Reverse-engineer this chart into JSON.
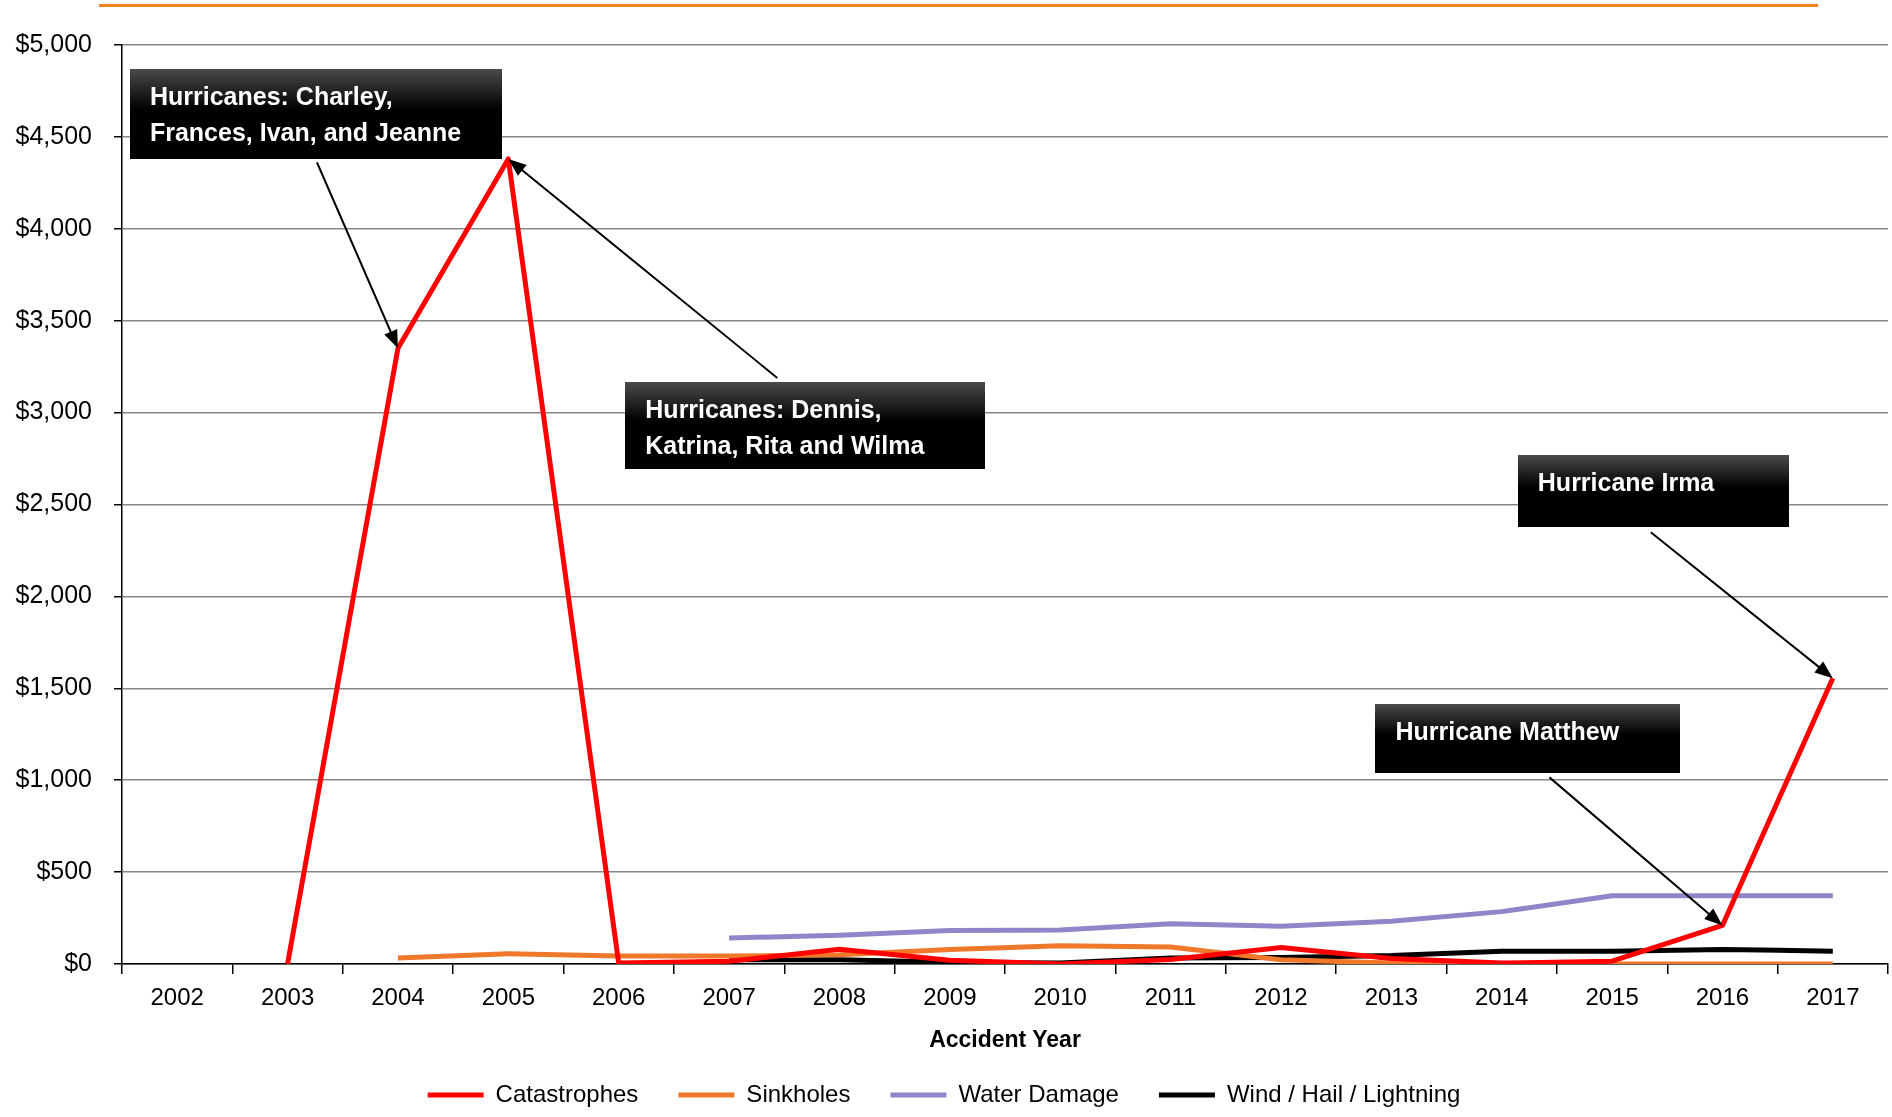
{
  "chart_data": {
    "type": "line",
    "categories": [
      "2002",
      "2003",
      "2004",
      "2005",
      "2006",
      "2007",
      "2008",
      "2009",
      "2010",
      "2011",
      "2012",
      "2013",
      "2014",
      "2015",
      "2016",
      "2017"
    ],
    "series": [
      {
        "name": "Catastrophes",
        "color": "#ff0000",
        "values": [
          null,
          0,
          3350,
          4380,
          5,
          15,
          80,
          20,
          0,
          25,
          90,
          30,
          5,
          15,
          210,
          1555
        ]
      },
      {
        "name": "Sinkholes",
        "color": "#f0782a",
        "values": [
          null,
          null,
          33,
          56,
          43,
          43,
          50,
          79,
          99,
          93,
          23,
          5,
          0,
          0,
          0,
          0
        ]
      },
      {
        "name": "Water Damage",
        "color": "#8e86c8",
        "values": [
          null,
          null,
          null,
          null,
          null,
          142,
          156,
          182,
          185,
          219,
          205,
          232,
          285,
          371,
          371,
          371
        ]
      },
      {
        "name": "Wind / Hail / Lightning",
        "color": "#000000",
        "values": [
          null,
          null,
          null,
          null,
          null,
          23,
          23,
          10,
          5,
          33,
          36,
          46,
          70,
          70,
          79,
          70
        ]
      }
    ],
    "xlabel": "Accident Year",
    "ylim": [
      0,
      5000
    ],
    "yticks": [
      {
        "value": 0,
        "label": "$0"
      },
      {
        "value": 500,
        "label": "$500"
      },
      {
        "value": 1000,
        "label": "$1,000"
      },
      {
        "value": 1500,
        "label": "$1,500"
      },
      {
        "value": 2000,
        "label": "$2,000"
      },
      {
        "value": 2500,
        "label": "$2,500"
      },
      {
        "value": 3000,
        "label": "$3,000"
      },
      {
        "value": 3500,
        "label": "$3,500"
      },
      {
        "value": 4000,
        "label": "$4,000"
      },
      {
        "value": 4500,
        "label": "$4,500"
      },
      {
        "value": 5000,
        "label": "$5,000"
      }
    ],
    "annotations": [
      "Hurricanes: Charley, Frances, Ivan, and Jeanne",
      "Hurricanes: Dennis, Katrina, Rita and Wilma",
      "Hurricane Irma",
      "Hurricane Matthew"
    ],
    "grid": "y",
    "legend": "bottom"
  }
}
